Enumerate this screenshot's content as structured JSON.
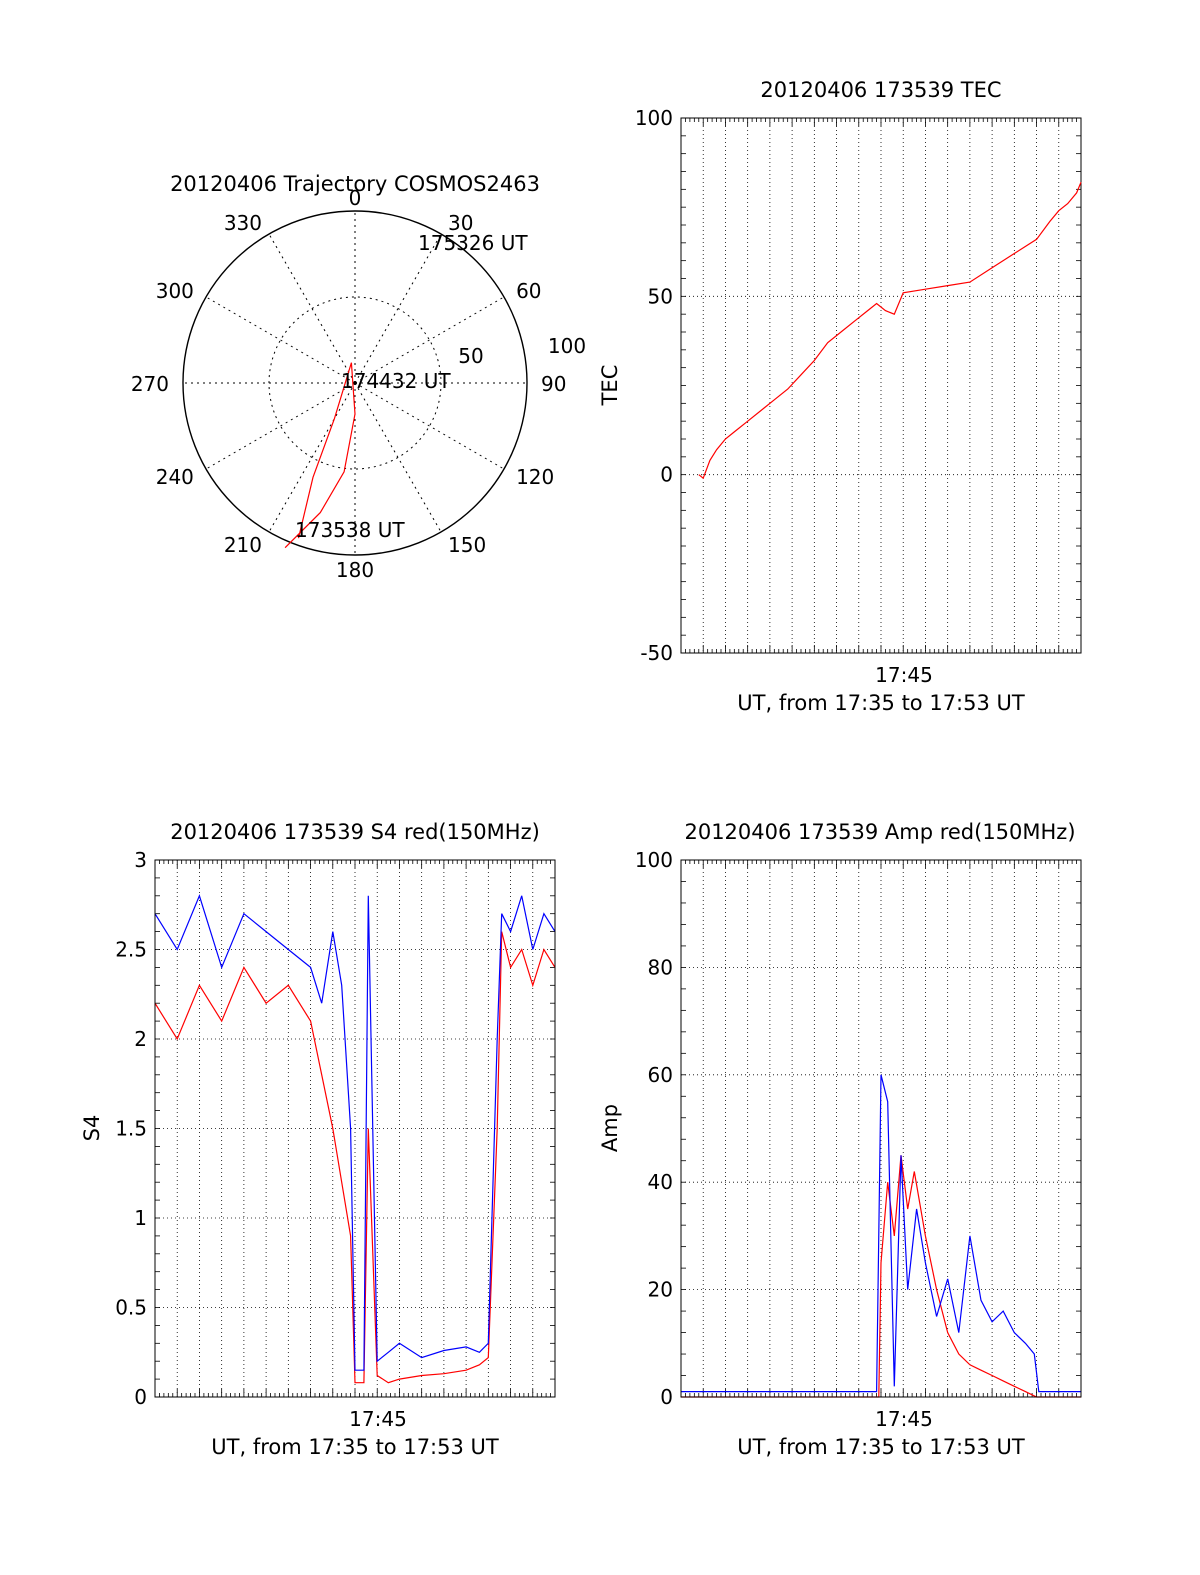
{
  "chart_data": [
    {
      "id": "trajectory",
      "type": "polar",
      "title": "20120406 Trajectory COSMOS2463",
      "azimuth_labels": [
        "0",
        "30",
        "60",
        "90",
        "120",
        "150",
        "180",
        "210",
        "240",
        "270",
        "300",
        "330"
      ],
      "elevation_ring_labels": [
        "50",
        "100"
      ],
      "point_labels": {
        "start": "173538 UT",
        "mid": "174432 UT",
        "end": "175326 UT"
      },
      "track": {
        "color": "#ff0000",
        "points": [
          [
            203,
            104
          ],
          [
            195,
            78
          ],
          [
            187,
            52
          ],
          [
            180,
            18
          ],
          [
            170,
            -12
          ],
          [
            30,
            -24
          ],
          [
            24,
            -60
          ],
          [
            20,
            -96
          ]
        ]
      }
    },
    {
      "id": "tec",
      "type": "line",
      "title": "20120406 173539 TEC",
      "ylabel": "TEC",
      "xlabel": "UT, from 17:35 to 17:53 UT",
      "x_tick_label": "17:45",
      "yticks": [
        "-50",
        "0",
        "50",
        "100"
      ],
      "ylim": [
        -50,
        100
      ],
      "xlim": [
        0,
        18
      ],
      "grid": true,
      "series": [
        {
          "color": "#ff0000",
          "x": [
            0.8,
            1.0,
            1.3,
            1.6,
            2.0,
            2.4,
            3.0,
            3.6,
            4.2,
            4.8,
            5.4,
            6.0,
            6.6,
            7.2,
            7.8,
            8.4,
            8.8,
            9.2,
            9.6,
            10.0,
            11.0,
            12.0,
            13.0,
            14.0,
            15.0,
            16.0,
            16.6,
            17.0,
            17.4,
            17.8,
            18.0
          ],
          "y": [
            0,
            -1,
            4,
            7,
            10,
            12,
            15,
            18,
            21,
            24,
            28,
            32,
            37,
            40,
            43,
            46,
            48,
            46,
            45,
            51,
            52,
            53,
            54,
            58,
            62,
            66,
            71,
            74,
            76,
            79,
            82
          ]
        }
      ]
    },
    {
      "id": "s4",
      "type": "line",
      "title": "20120406 173539 S4 red(150MHz)",
      "ylabel": "S4",
      "xlabel": "UT, from 17:35 to 17:53 UT",
      "x_tick_label": "17:45",
      "yticks": [
        "0",
        "0.5",
        "1",
        "1.5",
        "2",
        "2.5",
        "3"
      ],
      "ylim": [
        0,
        3
      ],
      "xlim": [
        0,
        18
      ],
      "grid": true,
      "series": [
        {
          "color": "#ff0000",
          "x": [
            0,
            1,
            2,
            3,
            4,
            5,
            6,
            7,
            7.5,
            8,
            8.4,
            8.8,
            9,
            9.4,
            9.6,
            10,
            10.5,
            11,
            12,
            13,
            14,
            14.6,
            15,
            15.4,
            15.6,
            16,
            16.5,
            17,
            17.5,
            18
          ],
          "y": [
            2.2,
            2.0,
            2.3,
            2.1,
            2.4,
            2.2,
            2.3,
            2.1,
            1.8,
            1.5,
            1.2,
            0.9,
            0.08,
            0.08,
            1.5,
            0.12,
            0.08,
            0.1,
            0.12,
            0.13,
            0.15,
            0.18,
            0.22,
            1.5,
            2.6,
            2.4,
            2.5,
            2.3,
            2.5,
            2.4
          ]
        },
        {
          "color": "#0000ff",
          "x": [
            0,
            1,
            2,
            3,
            4,
            5,
            6,
            7,
            7.5,
            8,
            8.4,
            8.8,
            9,
            9.4,
            9.6,
            10,
            10.5,
            11,
            12,
            13,
            14,
            14.6,
            15,
            15.4,
            15.6,
            16,
            16.5,
            17,
            17.5,
            18
          ],
          "y": [
            2.7,
            2.5,
            2.8,
            2.4,
            2.7,
            2.6,
            2.5,
            2.4,
            2.2,
            2.6,
            2.3,
            1.5,
            0.15,
            0.15,
            2.8,
            0.2,
            0.25,
            0.3,
            0.22,
            0.26,
            0.28,
            0.25,
            0.3,
            2.0,
            2.7,
            2.6,
            2.8,
            2.5,
            2.7,
            2.6
          ]
        }
      ]
    },
    {
      "id": "amp",
      "type": "line",
      "title": "20120406 173539 Amp red(150MHz)",
      "ylabel": "Amp",
      "xlabel": "UT, from 17:35 to 17:53 UT",
      "x_tick_label": "17:45",
      "yticks": [
        "0",
        "20",
        "40",
        "60",
        "80",
        "100"
      ],
      "ylim": [
        0,
        100
      ],
      "xlim": [
        0,
        18
      ],
      "grid": true,
      "series": [
        {
          "color": "#ff0000",
          "x": [
            0,
            8.9,
            9.0,
            9.3,
            9.6,
            9.9,
            10.2,
            10.5,
            11,
            11.5,
            12,
            12.5,
            13,
            13.5,
            14,
            14.5,
            15,
            15.5,
            16,
            18
          ],
          "y": [
            0,
            0,
            25,
            40,
            30,
            45,
            35,
            42,
            30,
            20,
            12,
            8,
            6,
            5,
            4,
            3,
            2,
            1,
            0,
            0
          ]
        },
        {
          "color": "#0000ff",
          "x": [
            0,
            1,
            3,
            5,
            7,
            8.8,
            9.0,
            9.3,
            9.6,
            9.9,
            10.2,
            10.6,
            11,
            11.5,
            12,
            12.5,
            13,
            13.5,
            14,
            14.5,
            15,
            15.5,
            15.9,
            16.1,
            17,
            18
          ],
          "y": [
            1,
            1,
            1,
            1,
            1,
            1,
            60,
            55,
            2,
            45,
            20,
            35,
            25,
            15,
            22,
            12,
            30,
            18,
            14,
            16,
            12,
            10,
            8,
            1,
            1,
            1
          ]
        }
      ]
    }
  ]
}
